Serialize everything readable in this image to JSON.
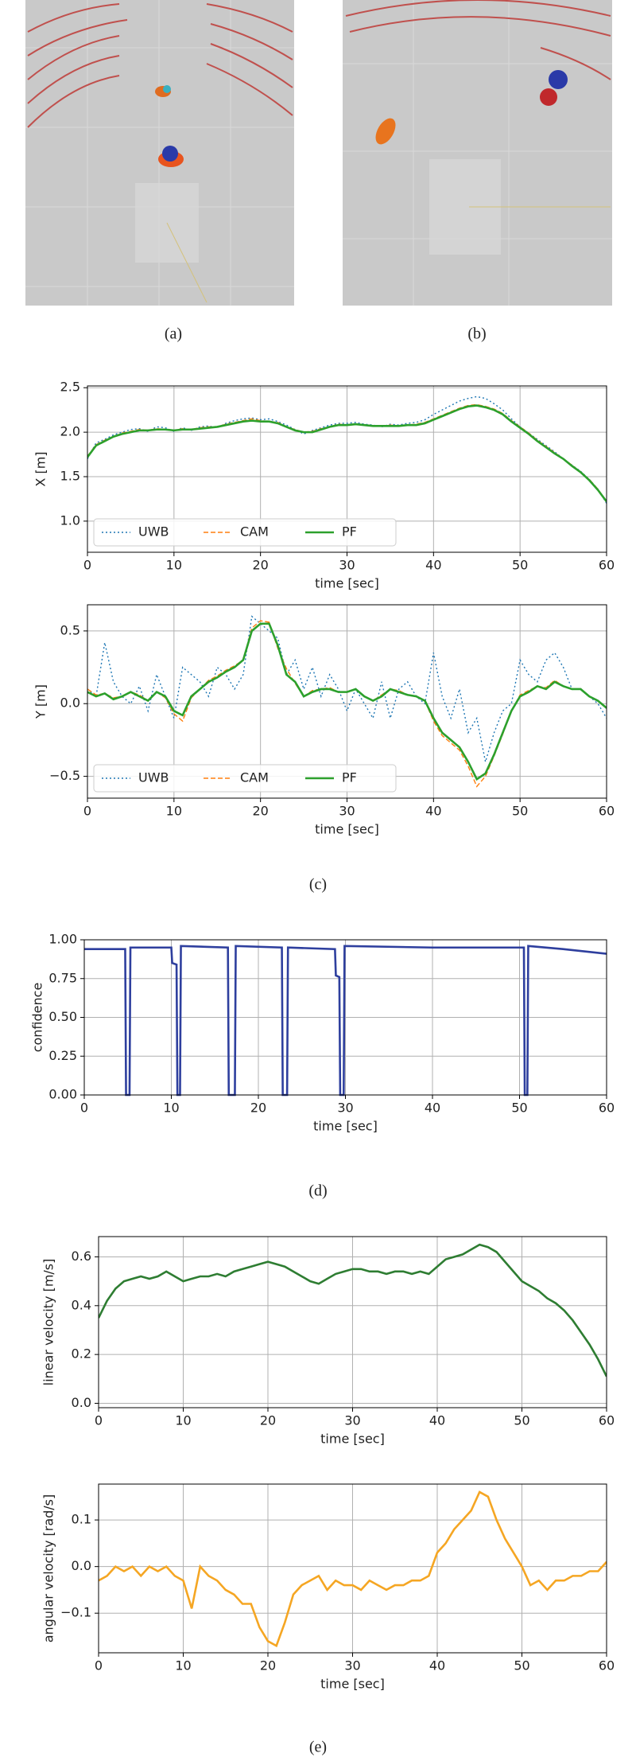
{
  "figure": {
    "captions": [
      "(a)",
      "(b)",
      "(c)",
      "(d)",
      "(e)"
    ]
  },
  "chart_data": [
    {
      "type": "line",
      "ylabel": "X [m]",
      "xlabel": "time [sec]",
      "grid": true,
      "legend": "lower left",
      "xlim": [
        0,
        60
      ],
      "xticks": [
        0,
        10,
        20,
        30,
        40,
        50,
        60
      ],
      "ylim": [
        0.65,
        2.52
      ],
      "yticks": [
        {
          "value": 1.0,
          "label": "1.0"
        },
        {
          "value": 1.5,
          "label": "1.5"
        },
        {
          "value": 2.0,
          "label": "2.0"
        },
        {
          "value": 2.5,
          "label": "2.5"
        }
      ],
      "x": [
        0,
        1,
        2,
        3,
        4,
        5,
        6,
        7,
        8,
        9,
        10,
        11,
        12,
        13,
        14,
        15,
        16,
        17,
        18,
        19,
        20,
        21,
        22,
        23,
        24,
        25,
        26,
        27,
        28,
        29,
        30,
        31,
        32,
        33,
        34,
        35,
        36,
        37,
        38,
        39,
        40,
        41,
        42,
        43,
        44,
        45,
        46,
        47,
        48,
        49,
        50,
        51,
        52,
        53,
        54,
        55,
        56,
        57,
        58,
        59,
        60
      ],
      "series": [
        {
          "name": "UWB",
          "color": "#1f77b4",
          "linestyle": "dotted",
          "values": [
            1.7,
            1.88,
            1.92,
            1.97,
            2.0,
            2.03,
            2.04,
            2.01,
            2.06,
            2.05,
            2.01,
            2.05,
            2.02,
            2.06,
            2.07,
            2.05,
            2.1,
            2.13,
            2.15,
            2.16,
            2.14,
            2.15,
            2.12,
            2.08,
            2.03,
            1.98,
            2.02,
            2.05,
            2.08,
            2.1,
            2.1,
            2.11,
            2.09,
            2.08,
            2.06,
            2.09,
            2.08,
            2.1,
            2.11,
            2.14,
            2.2,
            2.25,
            2.3,
            2.35,
            2.38,
            2.4,
            2.38,
            2.32,
            2.25,
            2.15,
            2.06,
            1.99,
            1.92,
            1.85,
            1.78,
            1.7,
            1.63,
            1.56,
            1.47,
            1.36,
            1.2
          ]
        },
        {
          "name": "CAM",
          "color": "#ff7f0e",
          "linestyle": "dashed",
          "values": [
            1.73,
            1.86,
            1.91,
            1.95,
            1.99,
            2.01,
            2.03,
            2.02,
            2.04,
            2.03,
            2.02,
            2.04,
            2.03,
            2.05,
            2.06,
            2.06,
            2.09,
            2.11,
            2.13,
            2.15,
            2.13,
            2.12,
            2.11,
            2.06,
            2.03,
            2.0,
            2.01,
            2.04,
            2.06,
            2.09,
            2.08,
            2.09,
            2.08,
            2.07,
            2.07,
            2.08,
            2.07,
            2.08,
            2.09,
            2.11,
            2.15,
            2.19,
            2.23,
            2.27,
            2.3,
            2.31,
            2.29,
            2.26,
            2.21,
            2.13,
            2.06,
            1.99,
            1.91,
            1.84,
            1.77,
            1.7,
            1.63,
            1.55,
            1.47,
            1.36,
            1.22
          ]
        },
        {
          "name": "PF",
          "color": "#2ca02c",
          "linestyle": "solid",
          "values": [
            1.72,
            1.85,
            1.9,
            1.95,
            1.98,
            2.0,
            2.02,
            2.02,
            2.03,
            2.03,
            2.02,
            2.03,
            2.03,
            2.04,
            2.05,
            2.06,
            2.08,
            2.1,
            2.12,
            2.13,
            2.12,
            2.12,
            2.1,
            2.06,
            2.02,
            2.0,
            2.0,
            2.03,
            2.06,
            2.08,
            2.08,
            2.09,
            2.08,
            2.07,
            2.07,
            2.07,
            2.07,
            2.08,
            2.08,
            2.1,
            2.14,
            2.18,
            2.22,
            2.26,
            2.29,
            2.3,
            2.28,
            2.25,
            2.2,
            2.12,
            2.05,
            1.98,
            1.9,
            1.83,
            1.76,
            1.7,
            1.62,
            1.55,
            1.46,
            1.35,
            1.22
          ]
        }
      ]
    },
    {
      "type": "line",
      "ylabel": "Y [m]",
      "xlabel": "time [sec]",
      "grid": true,
      "legend": "lower left",
      "xlim": [
        0,
        60
      ],
      "xticks": [
        0,
        10,
        20,
        30,
        40,
        50,
        60
      ],
      "ylim": [
        -0.65,
        0.68
      ],
      "yticks": [
        {
          "value": -0.5,
          "label": "−0.5"
        },
        {
          "value": 0.0,
          "label": "0.0"
        },
        0.5
      ],
      "x": [
        0,
        1,
        2,
        3,
        4,
        5,
        6,
        7,
        8,
        9,
        10,
        11,
        12,
        13,
        14,
        15,
        16,
        17,
        18,
        19,
        20,
        21,
        22,
        23,
        24,
        25,
        26,
        27,
        28,
        29,
        30,
        31,
        32,
        33,
        34,
        35,
        36,
        37,
        38,
        39,
        40,
        41,
        42,
        43,
        44,
        45,
        46,
        47,
        48,
        49,
        50,
        51,
        52,
        53,
        54,
        55,
        56,
        57,
        58,
        59,
        60
      ],
      "series": [
        {
          "name": "UWB",
          "color": "#1f77b4",
          "linestyle": "dotted",
          "values": [
            0.1,
            0.05,
            0.42,
            0.15,
            0.05,
            0.0,
            0.12,
            -0.05,
            0.2,
            0.05,
            -0.1,
            0.25,
            0.2,
            0.15,
            0.05,
            0.25,
            0.2,
            0.1,
            0.2,
            0.6,
            0.55,
            0.5,
            0.45,
            0.2,
            0.3,
            0.1,
            0.25,
            0.05,
            0.2,
            0.1,
            -0.05,
            0.1,
            0.0,
            -0.1,
            0.15,
            -0.1,
            0.1,
            0.15,
            0.05,
            0.0,
            0.35,
            0.05,
            -0.1,
            0.1,
            -0.2,
            -0.1,
            -0.4,
            -0.2,
            -0.05,
            0.0,
            0.3,
            0.2,
            0.15,
            0.3,
            0.35,
            0.25,
            0.1,
            0.1,
            0.05,
            0.0,
            -0.1
          ]
        },
        {
          "name": "CAM",
          "color": "#ff7f0e",
          "linestyle": "dashed",
          "values": [
            0.1,
            0.06,
            0.07,
            0.04,
            0.05,
            0.08,
            0.06,
            0.02,
            0.08,
            0.04,
            -0.07,
            -0.12,
            0.04,
            0.1,
            0.16,
            0.19,
            0.23,
            0.26,
            0.3,
            0.52,
            0.57,
            0.56,
            0.38,
            0.24,
            0.14,
            0.05,
            0.09,
            0.1,
            0.11,
            0.08,
            0.08,
            0.1,
            0.05,
            0.02,
            0.06,
            0.1,
            0.09,
            0.06,
            0.05,
            0.02,
            -0.12,
            -0.22,
            -0.27,
            -0.32,
            -0.43,
            -0.57,
            -0.5,
            -0.36,
            -0.21,
            -0.05,
            0.06,
            0.09,
            0.12,
            0.11,
            0.16,
            0.12,
            0.1,
            0.1,
            0.05,
            0.02,
            -0.03
          ]
        },
        {
          "name": "PF",
          "color": "#2ca02c",
          "linestyle": "solid",
          "values": [
            0.08,
            0.05,
            0.07,
            0.03,
            0.05,
            0.08,
            0.05,
            0.02,
            0.08,
            0.05,
            -0.05,
            -0.08,
            0.05,
            0.1,
            0.15,
            0.18,
            0.22,
            0.25,
            0.3,
            0.5,
            0.55,
            0.55,
            0.4,
            0.2,
            0.15,
            0.05,
            0.08,
            0.1,
            0.1,
            0.08,
            0.08,
            0.1,
            0.05,
            0.02,
            0.05,
            0.1,
            0.08,
            0.06,
            0.05,
            0.02,
            -0.1,
            -0.2,
            -0.25,
            -0.3,
            -0.4,
            -0.52,
            -0.48,
            -0.35,
            -0.2,
            -0.05,
            0.05,
            0.08,
            0.12,
            0.1,
            0.15,
            0.12,
            0.1,
            0.1,
            0.05,
            0.02,
            -0.03
          ]
        }
      ]
    },
    {
      "type": "line",
      "ylabel": "confidence",
      "xlabel": "time [sec]",
      "grid": true,
      "color": "#2e3f9e",
      "xlim": [
        0,
        60
      ],
      "xticks": [
        0,
        10,
        20,
        30,
        40,
        50,
        60
      ],
      "ylim": [
        0,
        1
      ],
      "yticks": [
        {
          "value": 0,
          "label": "0.00"
        },
        {
          "value": 0.25,
          "label": "0.25"
        },
        {
          "value": 0.5,
          "label": "0.50"
        },
        {
          "value": 0.75,
          "label": "0.75"
        },
        {
          "value": 1,
          "label": "1.00"
        }
      ],
      "x": [
        0,
        4.7,
        4.8,
        5.2,
        5.3,
        10.0,
        10.1,
        10.6,
        10.7,
        11.0,
        11.1,
        16.5,
        16.6,
        17.3,
        17.4,
        22.7,
        22.8,
        23.3,
        23.4,
        28.8,
        28.9,
        29.3,
        29.4,
        29.8,
        29.9,
        40,
        50.5,
        50.6,
        50.9,
        51.0,
        55,
        60
      ],
      "values": [
        0.94,
        0.94,
        0,
        0,
        0.95,
        0.95,
        0.85,
        0.84,
        0,
        0,
        0.96,
        0.95,
        0,
        0,
        0.96,
        0.95,
        0,
        0,
        0.95,
        0.94,
        0.77,
        0.76,
        0,
        0,
        0.96,
        0.95,
        0.95,
        0,
        0,
        0.96,
        0.94,
        0.91
      ]
    },
    {
      "type": "line",
      "ylabel": "linear velocity [m/s]",
      "xlabel": "time [sec]",
      "grid": true,
      "color": "#2e7d32",
      "xlim": [
        0,
        60
      ],
      "xticks": [
        0,
        10,
        20,
        30,
        40,
        50,
        60
      ],
      "ylim": [
        -0.018,
        0.683
      ],
      "yticks": [
        {
          "value": 0.0,
          "label": "0.0"
        },
        0.2,
        0.4,
        0.6
      ],
      "x": [
        0,
        1,
        2,
        3,
        4,
        5,
        6,
        7,
        8,
        9,
        10,
        11,
        12,
        13,
        14,
        15,
        16,
        17,
        18,
        19,
        20,
        21,
        22,
        23,
        24,
        25,
        26,
        27,
        28,
        29,
        30,
        31,
        32,
        33,
        34,
        35,
        36,
        37,
        38,
        39,
        40,
        41,
        42,
        43,
        44,
        45,
        46,
        47,
        48,
        49,
        50,
        51,
        52,
        53,
        54,
        55,
        56,
        57,
        58,
        59,
        60
      ],
      "values": [
        0.35,
        0.42,
        0.47,
        0.5,
        0.51,
        0.52,
        0.51,
        0.52,
        0.54,
        0.52,
        0.5,
        0.51,
        0.52,
        0.52,
        0.53,
        0.52,
        0.54,
        0.55,
        0.56,
        0.57,
        0.58,
        0.57,
        0.56,
        0.54,
        0.52,
        0.5,
        0.49,
        0.51,
        0.53,
        0.54,
        0.55,
        0.55,
        0.54,
        0.54,
        0.53,
        0.54,
        0.54,
        0.53,
        0.54,
        0.53,
        0.56,
        0.59,
        0.6,
        0.61,
        0.63,
        0.65,
        0.64,
        0.62,
        0.58,
        0.54,
        0.5,
        0.48,
        0.46,
        0.43,
        0.41,
        0.38,
        0.34,
        0.29,
        0.24,
        0.18,
        0.11
      ]
    },
    {
      "type": "line",
      "ylabel": "angular velocity [rad/s]",
      "xlabel": "time [sec]",
      "grid": true,
      "color": "#f5a623",
      "xlim": [
        0,
        60
      ],
      "xticks": [
        0,
        10,
        20,
        30,
        40,
        50,
        60
      ],
      "ylim": [
        -0.185,
        0.177
      ],
      "yticks": [
        {
          "value": -0.1,
          "label": "−0.1"
        },
        {
          "value": 0.0,
          "label": "0.0"
        },
        0.1
      ],
      "x": [
        0,
        1,
        2,
        3,
        4,
        5,
        6,
        7,
        8,
        9,
        10,
        11,
        12,
        13,
        14,
        15,
        16,
        17,
        18,
        19,
        20,
        21,
        22,
        23,
        24,
        25,
        26,
        27,
        28,
        29,
        30,
        31,
        32,
        33,
        34,
        35,
        36,
        37,
        38,
        39,
        40,
        41,
        42,
        43,
        44,
        45,
        46,
        47,
        48,
        49,
        50,
        51,
        52,
        53,
        54,
        55,
        56,
        57,
        58,
        59,
        60
      ],
      "values": [
        -0.03,
        -0.02,
        0.0,
        -0.01,
        0.0,
        -0.02,
        0.0,
        -0.01,
        0.0,
        -0.02,
        -0.03,
        -0.09,
        0.0,
        -0.02,
        -0.03,
        -0.05,
        -0.06,
        -0.08,
        -0.08,
        -0.13,
        -0.16,
        -0.17,
        -0.12,
        -0.06,
        -0.04,
        -0.03,
        -0.02,
        -0.05,
        -0.03,
        -0.04,
        -0.04,
        -0.05,
        -0.03,
        -0.04,
        -0.05,
        -0.04,
        -0.04,
        -0.03,
        -0.03,
        -0.02,
        0.03,
        0.05,
        0.08,
        0.1,
        0.12,
        0.16,
        0.15,
        0.1,
        0.06,
        0.03,
        0.0,
        -0.04,
        -0.03,
        -0.05,
        -0.03,
        -0.03,
        -0.02,
        -0.02,
        -0.01,
        -0.01,
        0.01
      ]
    }
  ]
}
